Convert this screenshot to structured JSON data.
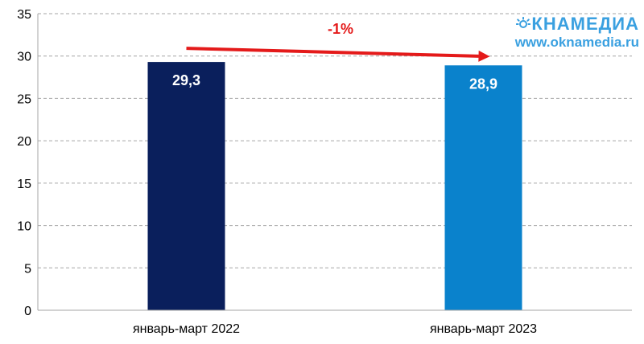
{
  "chart_data": {
    "type": "bar",
    "categories": [
      "январь-март 2022",
      "январь-март 2023"
    ],
    "values": [
      29.3,
      28.9
    ],
    "value_labels": [
      "29,3",
      "28,9"
    ],
    "bar_colors": [
      "#0a1f5c",
      "#0a82cc"
    ],
    "ylim": [
      0,
      35
    ],
    "yticks": [
      0,
      5,
      10,
      15,
      20,
      25,
      30,
      35
    ],
    "grid": true,
    "title": "",
    "xlabel": "",
    "ylabel": "",
    "annotation": {
      "text": "-1%",
      "color": "#e41a1a"
    }
  },
  "logo": {
    "name": "ОКНАМЕДИА",
    "url": "www.oknamedia.ru",
    "color": "#3aa0e0",
    "icon": "sun-icon"
  }
}
